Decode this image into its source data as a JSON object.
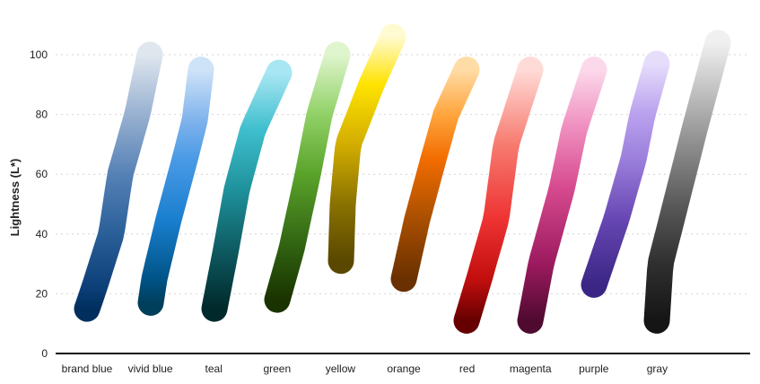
{
  "chart_data": {
    "type": "line",
    "ylabel": "Lightness (L*)",
    "ylim": [
      0,
      110
    ],
    "yticks": [
      0,
      20,
      40,
      60,
      80,
      100
    ],
    "grid": true,
    "categories": [
      "brand blue",
      "vivid blue",
      "teal",
      "green",
      "yellow",
      "orange",
      "red",
      "magenta",
      "purple",
      "gray"
    ],
    "series": [
      {
        "name": "brand blue",
        "stops": [
          {
            "L": 15,
            "color": "#002f5e"
          },
          {
            "L": 22,
            "color": "#0c3f78"
          },
          {
            "L": 40,
            "color": "#2a5f98"
          },
          {
            "L": 60,
            "color": "#5581b6"
          },
          {
            "L": 80,
            "color": "#98b1d1"
          },
          {
            "L": 100,
            "color": "#dfe6ee"
          }
        ]
      },
      {
        "name": "vivid blue",
        "stops": [
          {
            "L": 17,
            "color": "#003f5c"
          },
          {
            "L": 25,
            "color": "#005487"
          },
          {
            "L": 45,
            "color": "#1a7fcf"
          },
          {
            "L": 65,
            "color": "#4a9ae6"
          },
          {
            "L": 78,
            "color": "#7fb3ec"
          },
          {
            "L": 95,
            "color": "#cfe3f8"
          }
        ]
      },
      {
        "name": "teal",
        "stops": [
          {
            "L": 15,
            "color": "#00292b"
          },
          {
            "L": 35,
            "color": "#0e5c63"
          },
          {
            "L": 55,
            "color": "#1f929c"
          },
          {
            "L": 75,
            "color": "#3fbfce"
          },
          {
            "L": 94,
            "color": "#a9e6f3"
          }
        ]
      },
      {
        "name": "green",
        "stops": [
          {
            "L": 18,
            "color": "#1a3300"
          },
          {
            "L": 35,
            "color": "#2f6010"
          },
          {
            "L": 60,
            "color": "#5aa32b"
          },
          {
            "L": 80,
            "color": "#91d167"
          },
          {
            "L": 100,
            "color": "#dff5cd"
          }
        ]
      },
      {
        "name": "yellow",
        "stops": [
          {
            "L": 31,
            "color": "#5a4800"
          },
          {
            "L": 50,
            "color": "#8a7200"
          },
          {
            "L": 70,
            "color": "#d2ad00"
          },
          {
            "L": 90,
            "color": "#ffe300"
          },
          {
            "L": 106,
            "color": "#fffbd0"
          }
        ]
      },
      {
        "name": "orange",
        "stops": [
          {
            "L": 25,
            "color": "#6a3000"
          },
          {
            "L": 45,
            "color": "#a94f00"
          },
          {
            "L": 65,
            "color": "#f26c00"
          },
          {
            "L": 80,
            "color": "#ffa53d"
          },
          {
            "L": 95,
            "color": "#ffdca6"
          }
        ]
      },
      {
        "name": "red",
        "stops": [
          {
            "L": 11,
            "color": "#660000"
          },
          {
            "L": 25,
            "color": "#c30e0e"
          },
          {
            "L": 45,
            "color": "#ee3333"
          },
          {
            "L": 70,
            "color": "#f77b70"
          },
          {
            "L": 95,
            "color": "#ffdbd7"
          }
        ]
      },
      {
        "name": "magenta",
        "stops": [
          {
            "L": 11,
            "color": "#4f0a30"
          },
          {
            "L": 30,
            "color": "#9c1a5f"
          },
          {
            "L": 55,
            "color": "#d6498e"
          },
          {
            "L": 75,
            "color": "#ee8cbd"
          },
          {
            "L": 95,
            "color": "#fcd9ea"
          }
        ]
      },
      {
        "name": "purple",
        "stops": [
          {
            "L": 23,
            "color": "#3b2685"
          },
          {
            "L": 45,
            "color": "#6747b3"
          },
          {
            "L": 65,
            "color": "#9b7fdc"
          },
          {
            "L": 80,
            "color": "#b9a1ee"
          },
          {
            "L": 97,
            "color": "#e6ddfb"
          }
        ]
      },
      {
        "name": "gray",
        "stops": [
          {
            "L": 11,
            "color": "#151515"
          },
          {
            "L": 30,
            "color": "#2f2f2f"
          },
          {
            "L": 50,
            "color": "#5a5a5a"
          },
          {
            "L": 75,
            "color": "#9c9c9c"
          },
          {
            "L": 104,
            "color": "#f0f0f0"
          }
        ]
      }
    ]
  }
}
